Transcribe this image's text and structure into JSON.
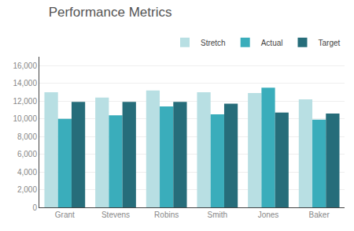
{
  "chart_data": {
    "type": "bar",
    "title": "Performance Metrics",
    "categories": [
      "Grant",
      "Stevens",
      "Robins",
      "Smith",
      "Jones",
      "Baker"
    ],
    "series": [
      {
        "name": "Stretch",
        "color": "#b8dfe3",
        "values": [
          13000,
          12400,
          13200,
          13000,
          12900,
          12200
        ]
      },
      {
        "name": "Actual",
        "color": "#3aadbb",
        "values": [
          10000,
          10400,
          11400,
          10500,
          13500,
          9900
        ]
      },
      {
        "name": "Target",
        "color": "#266d7a",
        "values": [
          11900,
          11900,
          11900,
          11700,
          10700,
          10600
        ]
      }
    ],
    "ylim": [
      0,
      17000
    ],
    "yticks": [
      0,
      {
        "value": 2000,
        "label": "2,000"
      },
      {
        "value": 4000,
        "label": "4,000"
      },
      {
        "value": 6000,
        "label": "6,000"
      },
      {
        "value": 8000,
        "label": "8,000"
      },
      {
        "value": 10000,
        "label": "10,000"
      },
      {
        "value": 12000,
        "label": "12,000"
      },
      {
        "value": 14000,
        "label": "14,000"
      },
      {
        "value": 16000,
        "label": "16,000"
      }
    ],
    "grid": true,
    "legend": "top-right"
  }
}
